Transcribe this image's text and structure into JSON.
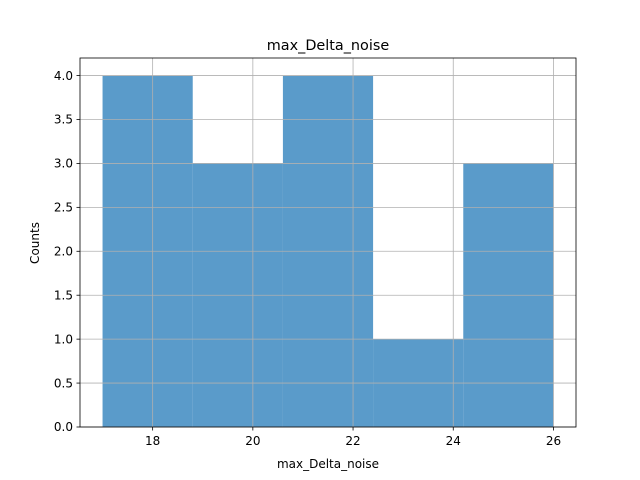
{
  "chart_data": {
    "type": "bar",
    "title": "max_Delta_noise",
    "xlabel": "max_Delta_noise",
    "ylabel": "Counts",
    "bins": [
      {
        "x0": 17.0,
        "x1": 18.8,
        "count": 4
      },
      {
        "x0": 18.8,
        "x1": 20.6,
        "count": 3
      },
      {
        "x0": 20.6,
        "x1": 22.4,
        "count": 4
      },
      {
        "x0": 22.4,
        "x1": 24.2,
        "count": 1
      },
      {
        "x0": 24.2,
        "x1": 26.0,
        "count": 3
      }
    ],
    "xlim": [
      16.55,
      26.45
    ],
    "ylim": [
      0,
      4.2
    ],
    "xticks": [
      18,
      20,
      22,
      24,
      26
    ],
    "xtick_labels": [
      "18",
      "20",
      "22",
      "24",
      "26"
    ],
    "yticks": [
      0,
      0.5,
      1,
      1.5,
      2,
      2.5,
      3,
      3.5,
      4
    ],
    "ytick_labels": [
      "0.0",
      "0.5",
      "1.0",
      "1.5",
      "2.0",
      "2.5",
      "3.0",
      "3.5",
      "4.0"
    ],
    "grid": true,
    "bar_color": "#3182bd",
    "bar_opacity": 0.8
  }
}
